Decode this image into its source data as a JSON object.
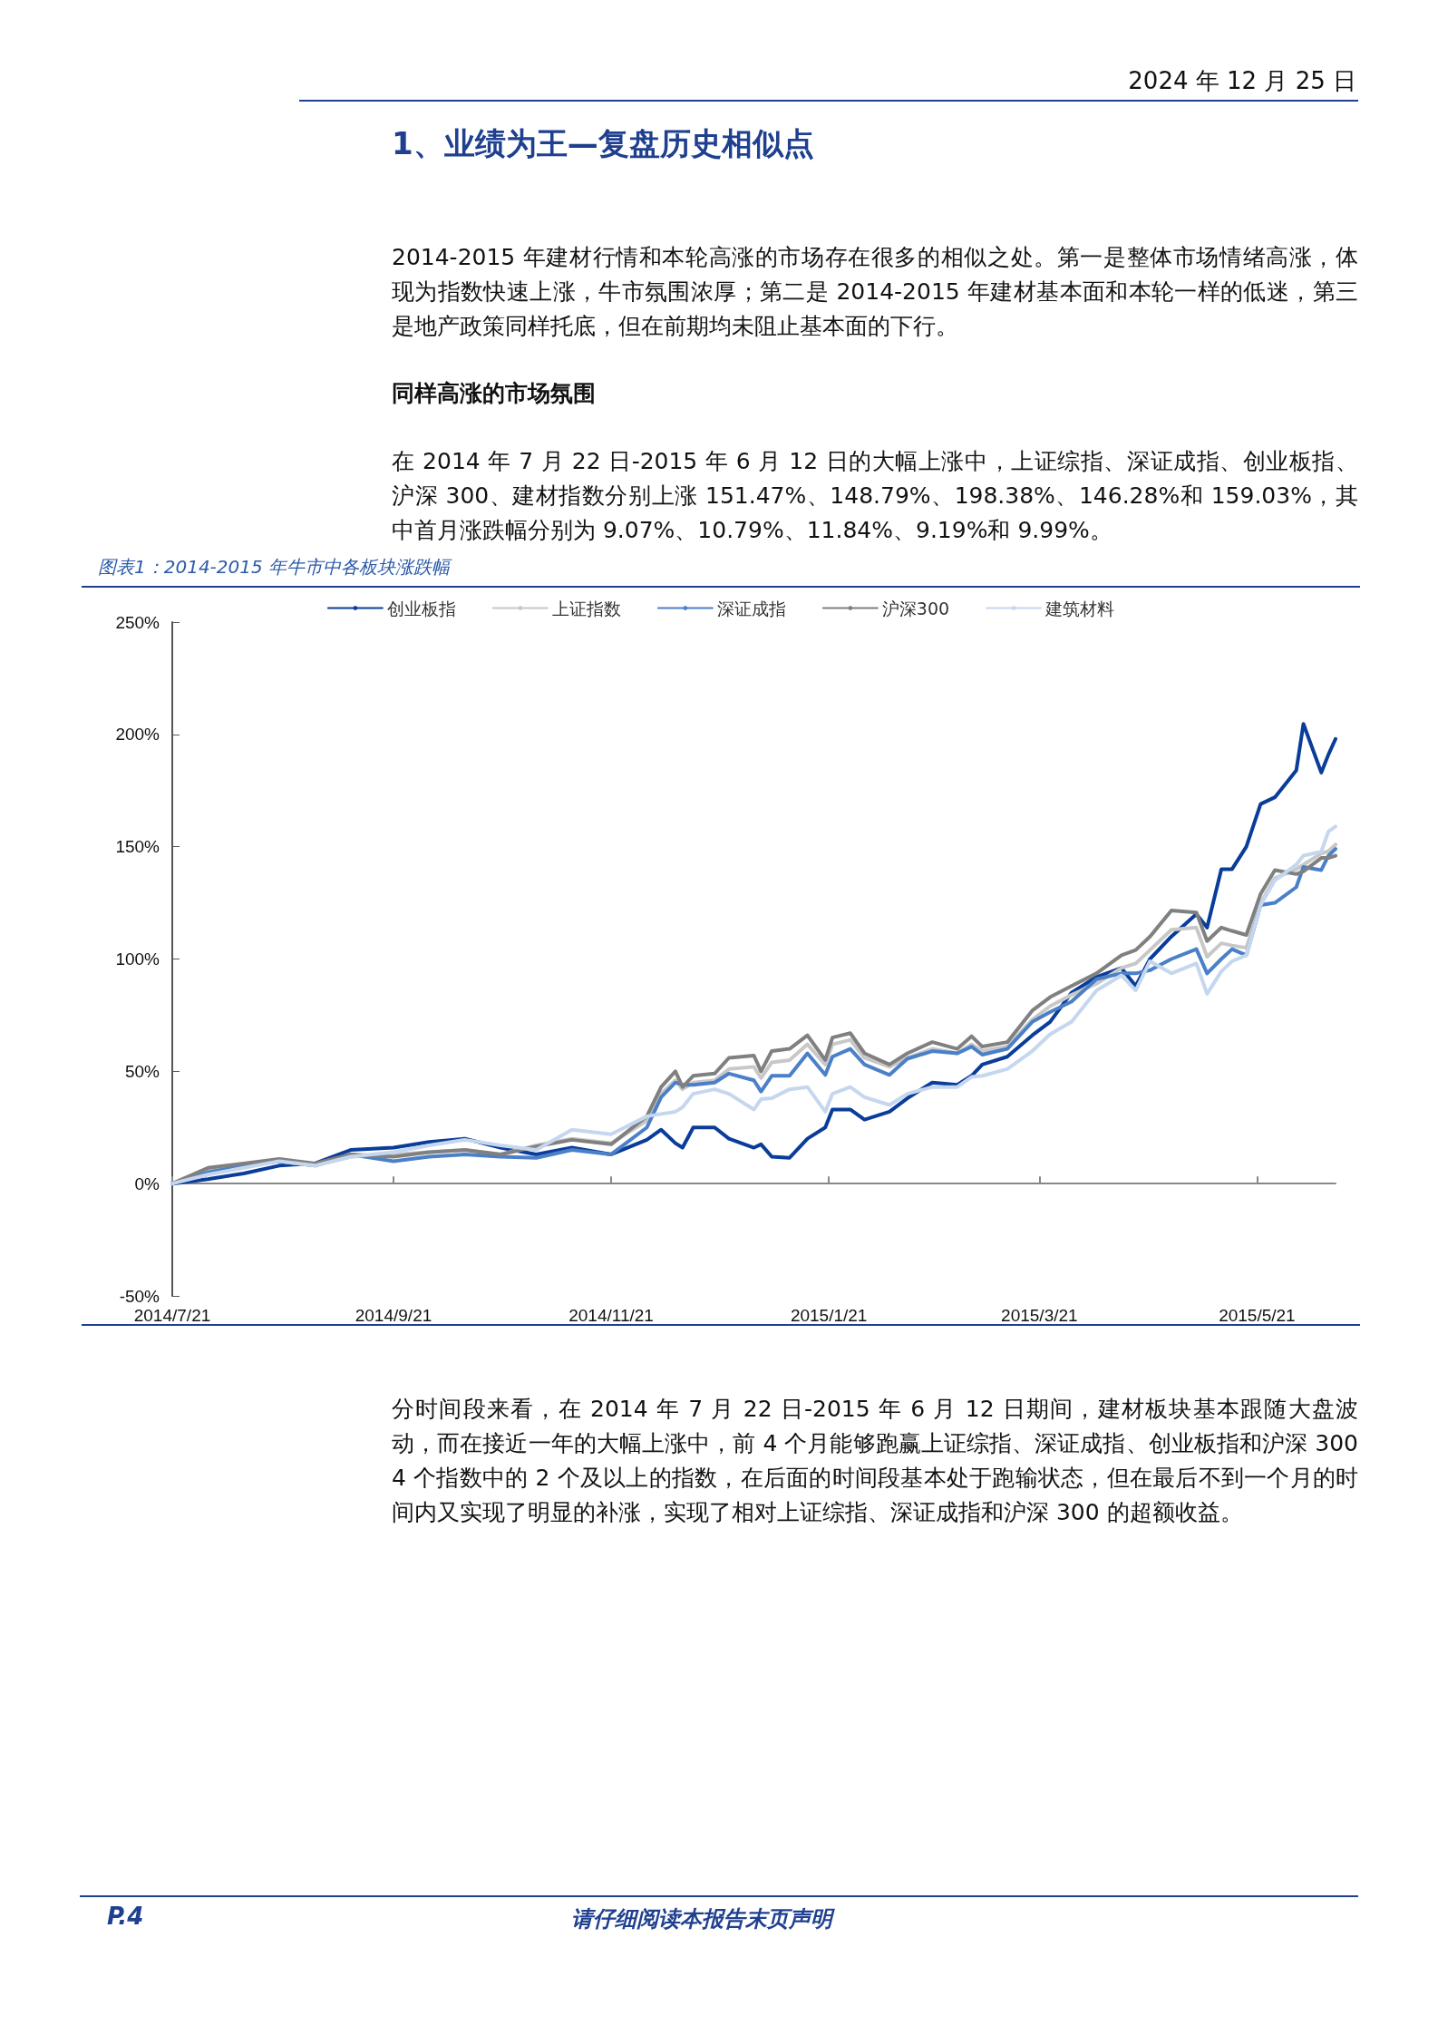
{
  "chart_data": {
    "type": "line",
    "title": "图表1：2014-2015 年牛市中各板块涨跌幅",
    "annotations": [
      "2024 年 12 月 25 日",
      "1、业绩为王—复盘历史相似点",
      "2014-2015 年建材行情和本轮高涨的市场存在很多的相似之处。第一是整体市场情绪高涨，体现为指数快速上涨，牛市氛围浓厚；第二是 2014-2015 年建材基本面和本轮一样的低迷，第三是地产政策同样托底，但在前期均未阻止基本面的下行。",
      "同样高涨的市场氛围",
      "在 2014 年 7 月 22 日-2015 年 6 月 12 日的大幅上涨中，上证综指、深证成指、创业板指、沪深 300、建材指数分别上涨 151.47%、148.79%、198.38%、146.28%和 159.03%，其中首月涨跌幅分别为 9.07%、10.79%、11.84%、9.19%和 9.99%。",
      "分时间段来看，在 2014 年 7 月 22 日-2015 年 6 月 12 日期间，建材板块基本跟随大盘波动，而在接近一年的大幅上涨中，前 4 个月能够跑赢上证综指、深证成指、创业板指和沪深 300 4 个指数中的 2 个及以上的指数，在后面的时间段基本处于跑输状态，但在最后不到一个月的时间内又实现了明显的补涨，实现了相对上证综指、深证成指和沪深 300 的超额收益。",
      "P.4",
      "请仔细阅读本报告末页声明"
    ],
    "x": [
      "2014-07-21",
      "2014-07-31",
      "2014-08-10",
      "2014-08-20",
      "2014-08-30",
      "2014-09-09",
      "2014-09-21",
      "2014-10-01",
      "2014-10-11",
      "2014-10-21",
      "2014-10-31",
      "2014-11-10",
      "2014-11-21",
      "2014-12-01",
      "2014-12-05",
      "2014-12-09",
      "2014-12-11",
      "2014-12-14",
      "2014-12-20",
      "2014-12-24",
      "2014-12-31",
      "2015-01-02",
      "2015-01-05",
      "2015-01-10",
      "2015-01-15",
      "2015-01-20",
      "2015-01-22",
      "2015-01-27",
      "2015-01-31",
      "2015-02-07",
      "2015-02-12",
      "2015-02-19",
      "2015-02-26",
      "2015-03-02",
      "2015-03-05",
      "2015-03-12",
      "2015-03-19",
      "2015-03-24",
      "2015-03-30",
      "2015-04-06",
      "2015-04-13",
      "2015-04-17",
      "2015-04-21",
      "2015-04-27",
      "2015-05-04",
      "2015-05-07",
      "2015-05-11",
      "2015-05-14",
      "2015-05-18",
      "2015-05-22",
      "2015-05-26",
      "2015-06-01",
      "2015-06-03",
      "2015-06-08",
      "2015-06-10",
      "2015-06-12"
    ],
    "series": [
      {
        "name": "创业板指",
        "color": "#0a3d99",
        "values": [
          0,
          2,
          4.5,
          8,
          9,
          15,
          16,
          18.5,
          20,
          16,
          13,
          16,
          13,
          19.5,
          24,
          18,
          16,
          25,
          25,
          20,
          16,
          17.5,
          12,
          11.5,
          20,
          25,
          33,
          33,
          28.5,
          32,
          38,
          45,
          44,
          48,
          53,
          56.5,
          66,
          72,
          85,
          92,
          96,
          88,
          100,
          110,
          120,
          114,
          140,
          140,
          150,
          169,
          172,
          184,
          204.7,
          183,
          191,
          198
        ]
      },
      {
        "name": "上证指数",
        "color": "#c8c8c8",
        "values": [
          0,
          6,
          8,
          10,
          8,
          12,
          13,
          14,
          15,
          13,
          17,
          20,
          18,
          28,
          40,
          46,
          42,
          45,
          46,
          51,
          52,
          47,
          54,
          55,
          62,
          53,
          62,
          64,
          56,
          52,
          56,
          60,
          58,
          62,
          59,
          61,
          73,
          79,
          84,
          89,
          96,
          98,
          104,
          113,
          114,
          101,
          107,
          106,
          105,
          125,
          136,
          140,
          142,
          147,
          148,
          151
        ]
      },
      {
        "name": "深证成指",
        "color": "#4a80c8",
        "values": [
          0,
          5,
          8,
          10,
          8,
          13,
          10,
          12,
          13,
          12,
          11.5,
          15,
          13,
          25,
          38.5,
          45,
          44,
          44,
          45,
          49,
          46,
          41,
          48,
          48,
          58,
          48.4,
          56.5,
          60,
          53,
          48.4,
          55.6,
          59,
          58,
          61,
          57.4,
          60,
          72,
          76.4,
          81,
          91,
          93.6,
          93.6,
          95,
          100,
          104.4,
          93.6,
          100,
          104.4,
          101.7,
          124,
          125,
          132,
          141,
          139.6,
          146,
          149
        ]
      },
      {
        "name": "沪深300",
        "color": "#808080",
        "values": [
          0,
          7,
          9,
          11,
          9,
          13,
          12,
          14,
          15,
          13,
          16.5,
          19.5,
          17.5,
          30,
          43,
          50,
          43,
          48,
          49,
          56,
          57,
          50,
          59,
          60,
          66,
          55,
          65,
          67,
          58,
          53,
          58,
          63,
          60,
          65.6,
          61,
          63,
          77,
          83,
          88,
          93.6,
          101.7,
          104,
          110,
          121.6,
          120.7,
          108,
          114,
          112.5,
          110.7,
          129,
          139.6,
          137.8,
          139,
          145,
          145,
          146
        ]
      },
      {
        "name": "建筑材料",
        "color": "#c5d7ee",
        "values": [
          0,
          4,
          7,
          10,
          8,
          12,
          14,
          17,
          19.5,
          17,
          15,
          24,
          22,
          30,
          31,
          32,
          34,
          40,
          42,
          40,
          33,
          37.6,
          38,
          42,
          43,
          32,
          40,
          43,
          38.5,
          35,
          40,
          43,
          43,
          47.5,
          48,
          51,
          59,
          66.5,
          72,
          86,
          92.7,
          86,
          99,
          93.6,
          98,
          84.5,
          94.5,
          99,
          101.7,
          124,
          135,
          142,
          146,
          147.8,
          156.8,
          159
        ]
      }
    ],
    "xlim": [
      "2014-07-21",
      "2015-06-12"
    ],
    "xticks": [
      {
        "value": "2014-07-21",
        "label": "2014/7/21"
      },
      {
        "value": "2014-09-21",
        "label": "2014/9/21"
      },
      {
        "value": "2014-11-21",
        "label": "2014/11/21"
      },
      {
        "value": "2015-01-21",
        "label": "2015/1/21"
      },
      {
        "value": "2015-03-21",
        "label": "2015/3/21"
      },
      {
        "value": "2015-05-21",
        "label": "2015/5/21"
      }
    ],
    "ylim": [
      -50,
      250
    ],
    "yticks": [
      {
        "value": -50,
        "label": "-50%"
      },
      {
        "value": 0,
        "label": "0%"
      },
      {
        "value": 50,
        "label": "50%"
      },
      {
        "value": 100,
        "label": "100%"
      },
      {
        "value": 150,
        "label": "150%"
      },
      {
        "value": 200,
        "label": "200%"
      },
      {
        "value": 250,
        "label": "250%"
      }
    ],
    "legend": "top",
    "marker": "none",
    "line_style": "solid"
  }
}
